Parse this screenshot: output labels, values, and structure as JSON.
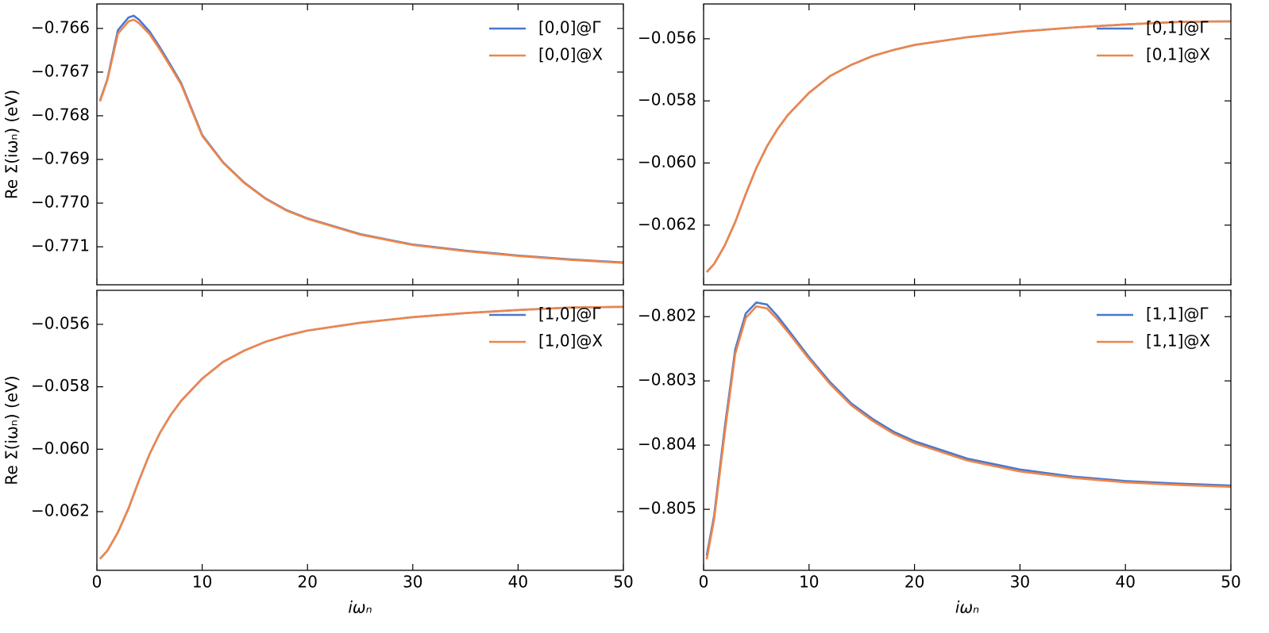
{
  "chart_data": [
    {
      "type": "line",
      "ylabel": "Re Σ(iωₙ) (eV)",
      "xticklabels": false,
      "x": [
        0.3,
        1,
        2,
        3,
        3.5,
        4,
        5,
        6,
        7,
        8,
        10,
        12,
        14,
        16,
        18,
        20,
        25,
        30,
        35,
        40,
        45,
        50
      ],
      "series": [
        {
          "name": "[0,0]@Γ",
          "color": "#4878d0",
          "values": [
            -0.76765,
            -0.76716,
            -0.76604,
            -0.76575,
            -0.76571,
            -0.7658,
            -0.76607,
            -0.76644,
            -0.76684,
            -0.76725,
            -0.76844,
            -0.76907,
            -0.76953,
            -0.76989,
            -0.77016,
            -0.77035,
            -0.77071,
            -0.77095,
            -0.77109,
            -0.7712,
            -0.77129,
            -0.77136
          ]
        },
        {
          "name": "[0,0]@X",
          "color": "#ee854a",
          "values": [
            -0.76767,
            -0.76718,
            -0.76612,
            -0.76584,
            -0.7658,
            -0.76588,
            -0.76613,
            -0.76649,
            -0.76688,
            -0.76728,
            -0.76846,
            -0.76908,
            -0.76954,
            -0.7699,
            -0.77017,
            -0.77036,
            -0.77072,
            -0.77096,
            -0.7711,
            -0.77121,
            -0.7713,
            -0.77137
          ]
        }
      ],
      "xlim": [
        0,
        50
      ],
      "xticks": [
        0,
        10,
        20,
        30,
        40,
        50
      ],
      "ylim": [
        -0.77187,
        -0.76544
      ],
      "yticks": [
        {
          "value": -0.766,
          "label": "−0.766"
        },
        {
          "value": -0.767,
          "label": "−0.767"
        },
        {
          "value": -0.768,
          "label": "−0.768"
        },
        {
          "value": -0.769,
          "label": "−0.769"
        },
        {
          "value": -0.77,
          "label": "−0.770"
        },
        {
          "value": -0.771,
          "label": "−0.771"
        }
      ],
      "legend": "upper right"
    },
    {
      "type": "line",
      "xticklabels": false,
      "x": [
        0.3,
        1,
        2,
        3,
        4,
        5,
        6,
        7,
        8,
        10,
        12,
        14,
        16,
        18,
        20,
        25,
        30,
        35,
        40,
        45,
        50
      ],
      "series": [
        {
          "name": "[0,1]@Γ",
          "color": "#4878d0",
          "values": [
            -0.06351,
            -0.06325,
            -0.06266,
            -0.0619,
            -0.061,
            -0.06016,
            -0.05947,
            -0.05891,
            -0.05845,
            -0.05774,
            -0.0572,
            -0.05684,
            -0.05656,
            -0.05636,
            -0.0562,
            -0.05595,
            -0.05577,
            -0.05564,
            -0.05554,
            -0.05546,
            -0.05544
          ]
        },
        {
          "name": "[0,1]@X",
          "color": "#ee854a",
          "values": [
            -0.06351,
            -0.06325,
            -0.06266,
            -0.0619,
            -0.061,
            -0.06016,
            -0.05947,
            -0.05891,
            -0.05845,
            -0.05774,
            -0.0572,
            -0.05684,
            -0.05656,
            -0.05636,
            -0.0562,
            -0.05595,
            -0.05577,
            -0.05564,
            -0.05554,
            -0.05546,
            -0.05544
          ]
        }
      ],
      "xlim": [
        0,
        50
      ],
      "xticks": [
        0,
        10,
        20,
        30,
        40,
        50
      ],
      "ylim": [
        -0.06392,
        -0.05488
      ],
      "yticks": [
        {
          "value": -0.056,
          "label": "−0.056"
        },
        {
          "value": -0.058,
          "label": "−0.058"
        },
        {
          "value": -0.06,
          "label": "−0.060"
        },
        {
          "value": -0.062,
          "label": "−0.062"
        }
      ],
      "legend": "upper right"
    },
    {
      "type": "line",
      "ylabel": "Re Σ(iωₙ) (eV)",
      "xlabel": "iωₙ",
      "xticklabels": true,
      "x": [
        0.3,
        1,
        2,
        3,
        4,
        5,
        6,
        7,
        8,
        10,
        12,
        14,
        16,
        18,
        20,
        25,
        30,
        35,
        40,
        45,
        50
      ],
      "series": [
        {
          "name": "[1,0]@Γ",
          "color": "#4878d0",
          "values": [
            -0.06351,
            -0.06325,
            -0.06266,
            -0.0619,
            -0.061,
            -0.06016,
            -0.05947,
            -0.05891,
            -0.05845,
            -0.05774,
            -0.0572,
            -0.05684,
            -0.05656,
            -0.05636,
            -0.0562,
            -0.05595,
            -0.05577,
            -0.05564,
            -0.05554,
            -0.05546,
            -0.05544
          ]
        },
        {
          "name": "[1,0]@X",
          "color": "#ee854a",
          "values": [
            -0.06351,
            -0.06325,
            -0.06266,
            -0.0619,
            -0.061,
            -0.06016,
            -0.05947,
            -0.05891,
            -0.05845,
            -0.05774,
            -0.0572,
            -0.05684,
            -0.05656,
            -0.05636,
            -0.0562,
            -0.05595,
            -0.05577,
            -0.05564,
            -0.05554,
            -0.05546,
            -0.05544
          ]
        }
      ],
      "xlim": [
        0,
        50
      ],
      "xticks": [
        0,
        10,
        20,
        30,
        40,
        50
      ],
      "ylim": [
        -0.06388,
        -0.05491
      ],
      "yticks": [
        {
          "value": -0.056,
          "label": "−0.056"
        },
        {
          "value": -0.058,
          "label": "−0.058"
        },
        {
          "value": -0.06,
          "label": "−0.060"
        },
        {
          "value": -0.062,
          "label": "−0.062"
        }
      ],
      "legend": "upper right"
    },
    {
      "type": "line",
      "xlabel": "iωₙ",
      "xticklabels": true,
      "x": [
        0.3,
        1,
        2,
        3,
        4,
        5,
        6,
        7,
        8,
        10,
        12,
        14,
        16,
        18,
        20,
        25,
        30,
        35,
        40,
        45,
        50
      ],
      "series": [
        {
          "name": "[1,1]@Γ",
          "color": "#4878d0",
          "values": [
            -0.80572,
            -0.8051,
            -0.80374,
            -0.80251,
            -0.80195,
            -0.80178,
            -0.80181,
            -0.80199,
            -0.8022,
            -0.80263,
            -0.80302,
            -0.80335,
            -0.80359,
            -0.80379,
            -0.80394,
            -0.80421,
            -0.80438,
            -0.80449,
            -0.80456,
            -0.8046,
            -0.80463
          ]
        },
        {
          "name": "[1,1]@X",
          "color": "#ee854a",
          "values": [
            -0.80578,
            -0.80515,
            -0.80382,
            -0.80258,
            -0.80202,
            -0.80184,
            -0.80187,
            -0.80204,
            -0.80224,
            -0.80266,
            -0.80305,
            -0.80338,
            -0.80362,
            -0.80382,
            -0.80397,
            -0.80424,
            -0.80441,
            -0.80451,
            -0.80458,
            -0.80462,
            -0.80465
          ]
        }
      ],
      "xlim": [
        0,
        50
      ],
      "xticks": [
        0,
        10,
        20,
        30,
        40,
        50
      ],
      "ylim": [
        -0.80595,
        -0.80159
      ],
      "yticks": [
        {
          "value": -0.802,
          "label": "−0.802"
        },
        {
          "value": -0.803,
          "label": "−0.803"
        },
        {
          "value": -0.804,
          "label": "−0.804"
        },
        {
          "value": -0.805,
          "label": "−0.805"
        }
      ],
      "legend": "upper right"
    }
  ]
}
